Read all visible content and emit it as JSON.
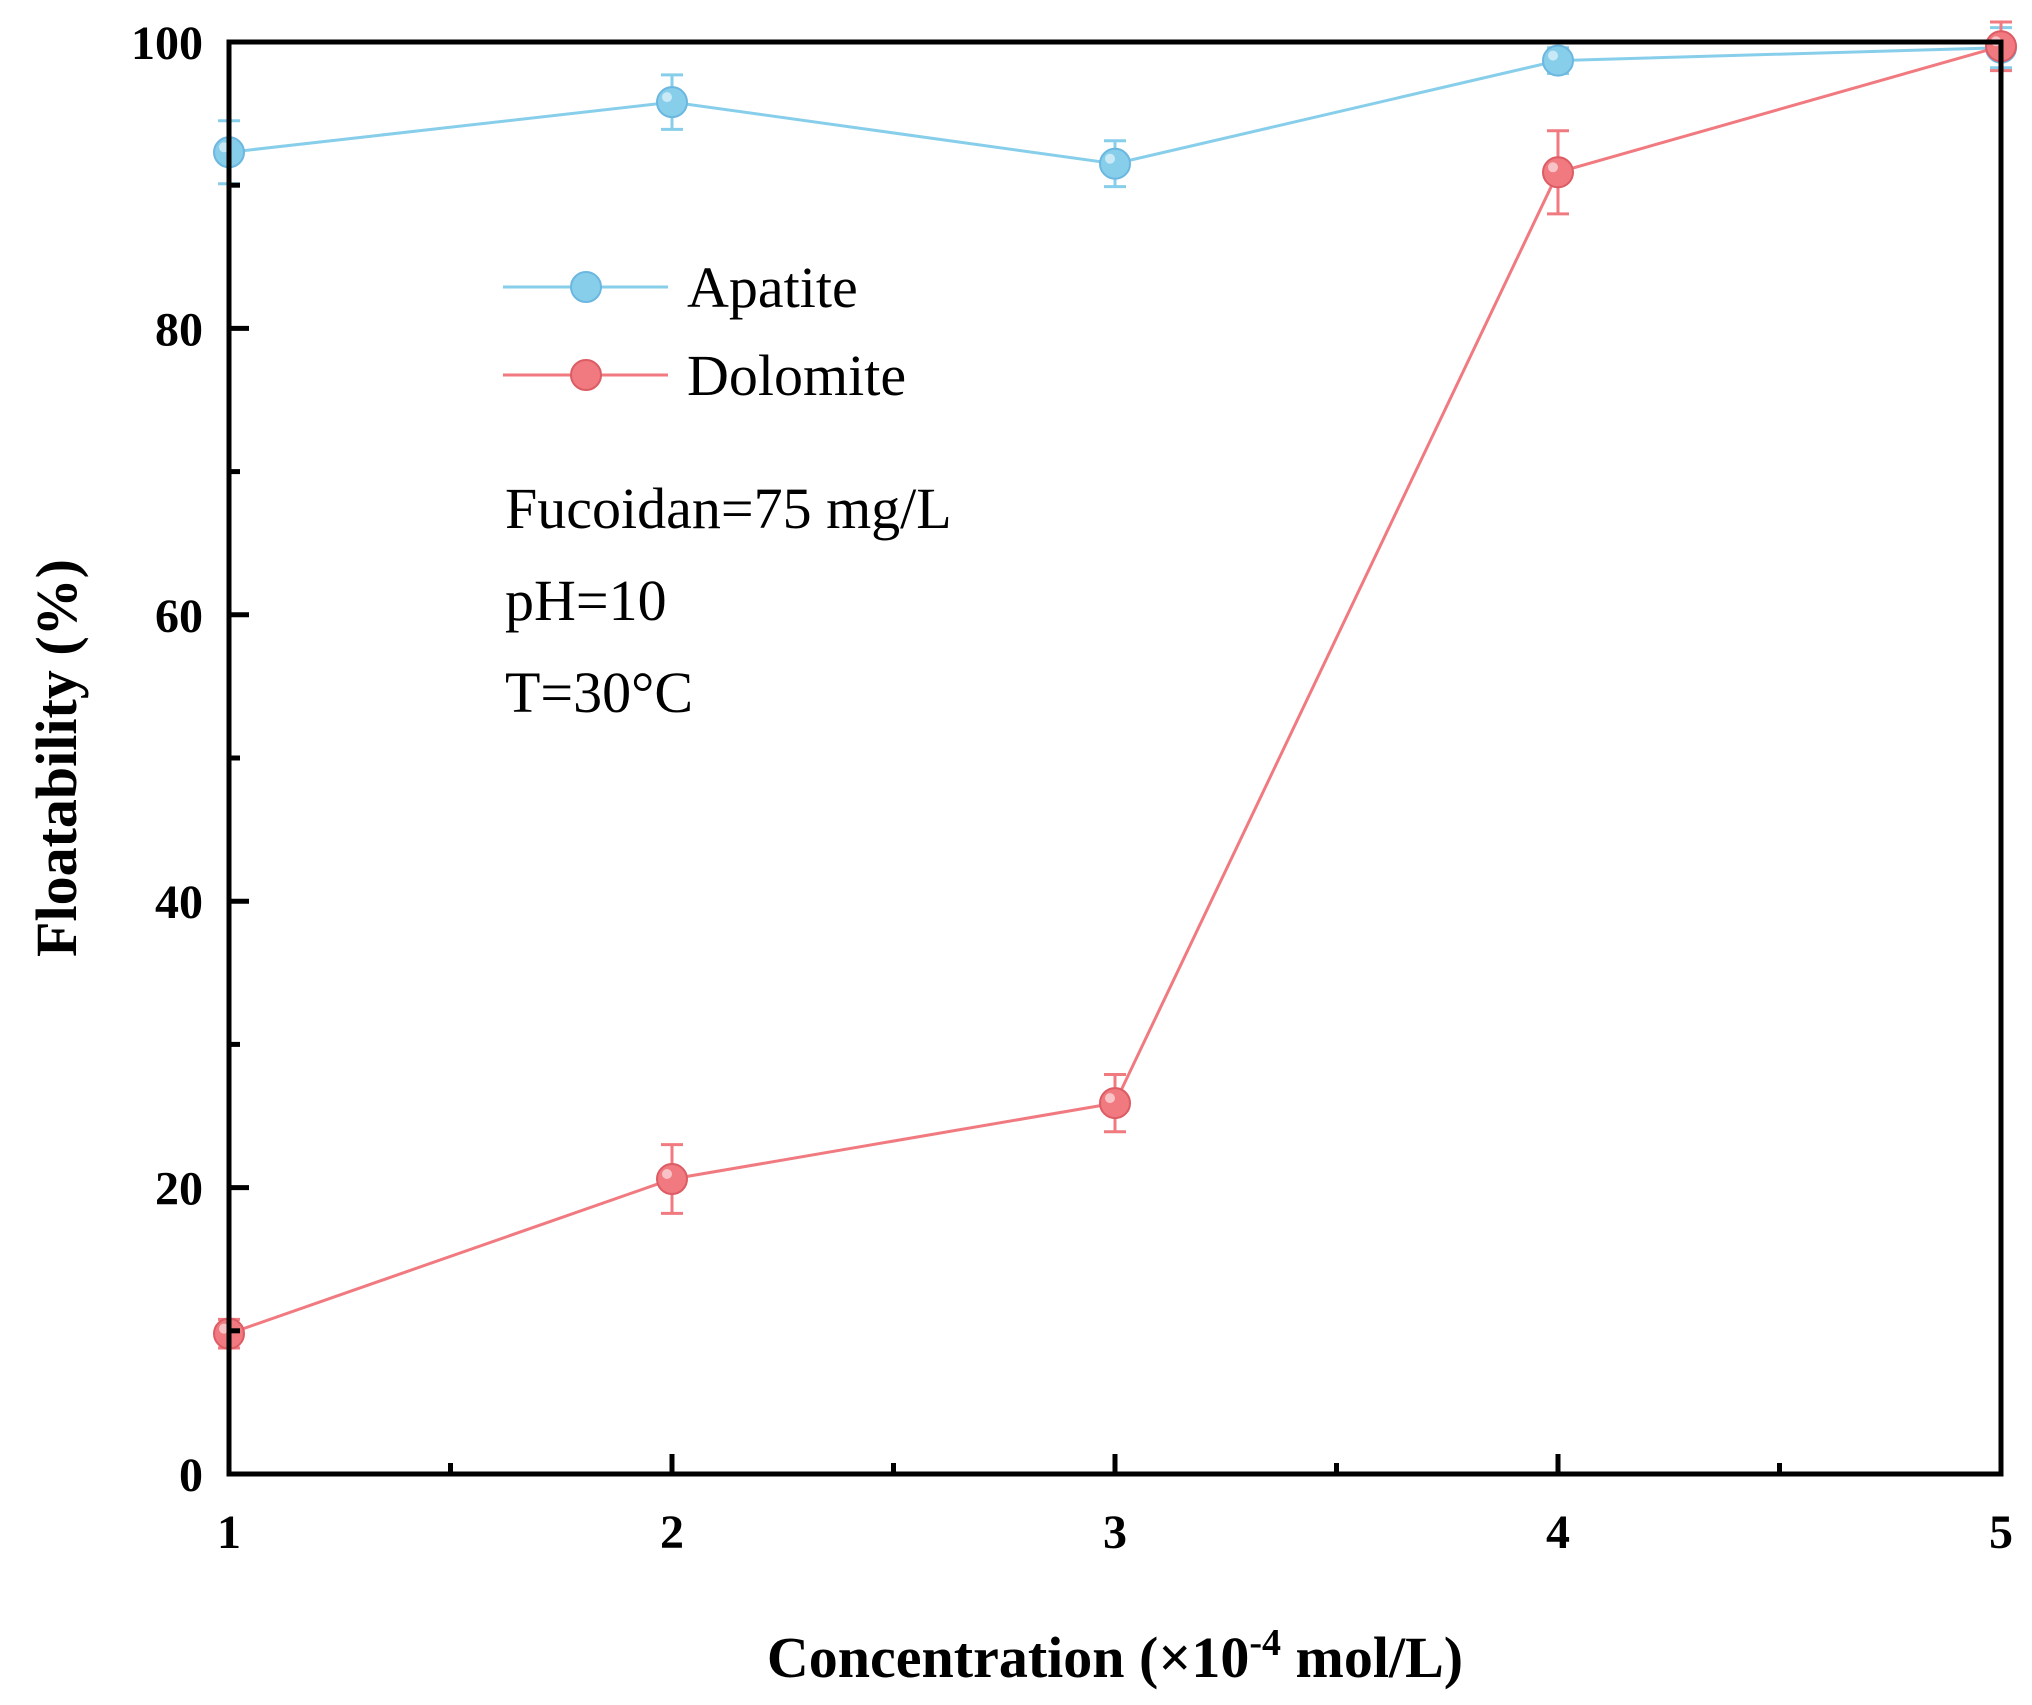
{
  "chart_data": {
    "type": "line",
    "xlabel": "Concentration (×10",
    "xlabel_sup": "-4",
    "xlabel_suffix": " mol/L)",
    "ylabel": "Floatability (%)",
    "xlim": [
      1,
      5
    ],
    "ylim": [
      0,
      100
    ],
    "x_ticks": [
      1,
      2,
      3,
      4,
      5
    ],
    "y_ticks": [
      0,
      20,
      40,
      60,
      80,
      100
    ],
    "x": [
      1,
      2,
      3,
      4,
      5
    ],
    "series": [
      {
        "name": "Apatite",
        "color": "#87ceeb",
        "values": [
          92.3,
          95.8,
          91.5,
          98.7,
          99.6
        ],
        "errors": [
          2.2,
          1.9,
          1.6,
          0.9,
          1.4
        ]
      },
      {
        "name": "Dolomite",
        "color": "#f07a80",
        "values": [
          9.8,
          20.6,
          25.9,
          90.9,
          99.7
        ],
        "errors": [
          1.0,
          2.4,
          2.0,
          2.9,
          1.7
        ]
      }
    ],
    "legend_position": "upper-left",
    "annotations": [
      "Fucoidan=75 mg/L",
      "pH=10",
      "T=30°C"
    ],
    "grid": false
  }
}
